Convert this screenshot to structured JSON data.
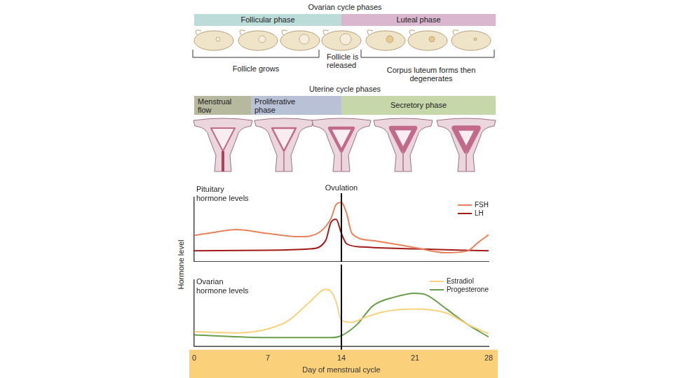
{
  "ovarian_cycle": {
    "title": "Ovarian cycle phases",
    "phases": [
      {
        "label": "Follicular phase",
        "color": "#bcdcd9"
      },
      {
        "label": "Luteal phase",
        "color": "#dab6cf"
      }
    ],
    "stages": [
      "Follicle grows",
      "Follicle is released",
      "Corpus luteum forms then degenerates"
    ]
  },
  "uterine_cycle": {
    "title": "Uterine cycle phases",
    "phases": [
      {
        "label": "Menstrual flow",
        "color": "#b6b99e"
      },
      {
        "label": "Proliferative phase",
        "color": "#b9c1d7"
      },
      {
        "label": "Secretory phase",
        "color": "#c6d8a9"
      }
    ]
  },
  "y_label": "Hormone level",
  "chart_data": [
    {
      "type": "line",
      "title": "Pituitary hormone levels",
      "xlim": [
        0,
        28
      ],
      "ylim": [
        0,
        100
      ],
      "yticks": [],
      "grid": false,
      "tick_labels": false,
      "legend": "upper right",
      "annotations": [
        {
          "x": 14,
          "label": "Ovulation"
        }
      ],
      "series": [
        {
          "name": "FSH",
          "color": "#e8825a",
          "x": [
            0,
            2,
            4,
            7,
            10,
            12,
            13,
            13.5,
            14,
            14.5,
            15,
            17,
            21,
            24,
            26,
            27,
            28
          ],
          "values": [
            41,
            46,
            50,
            44,
            39,
            47,
            67,
            89,
            92,
            75,
            44,
            33,
            22,
            14,
            17,
            30,
            42
          ]
        },
        {
          "name": "LH",
          "color": "#a31a1a",
          "x": [
            0,
            7,
            11,
            12.5,
            13,
            13.5,
            14,
            14.5,
            16,
            21,
            28
          ],
          "values": [
            17,
            18,
            20,
            33,
            61,
            66,
            44,
            28,
            23,
            20,
            17
          ]
        }
      ]
    },
    {
      "type": "line",
      "title": "Ovarian hormone levels",
      "xlabel": "Day of menstrual cycle",
      "xlim": [
        0,
        28
      ],
      "xticks": [
        0,
        7,
        14,
        21,
        28
      ],
      "ylim": [
        0,
        100
      ],
      "yticks": [],
      "grid": false,
      "tick_labels": "x",
      "legend": "upper right",
      "annotations": [
        {
          "x": 14
        }
      ],
      "series": [
        {
          "name": "Estradiol",
          "color": "#f7d27e",
          "x": [
            0,
            4,
            7,
            9,
            11,
            12.5,
            13,
            13.5,
            14,
            15,
            16,
            18,
            21,
            24,
            26,
            28
          ],
          "values": [
            22,
            20,
            26,
            39,
            67,
            86,
            83,
            67,
            39,
            36,
            42,
            52,
            56,
            50,
            33,
            19
          ]
        },
        {
          "name": "Progesterone",
          "color": "#6b9e4a",
          "x": [
            0,
            7,
            13,
            14,
            15.5,
            17,
            19,
            21,
            22,
            24,
            26,
            28
          ],
          "values": [
            17,
            13,
            13,
            16,
            33,
            61,
            74,
            80,
            78,
            56,
            33,
            14
          ]
        }
      ]
    }
  ]
}
